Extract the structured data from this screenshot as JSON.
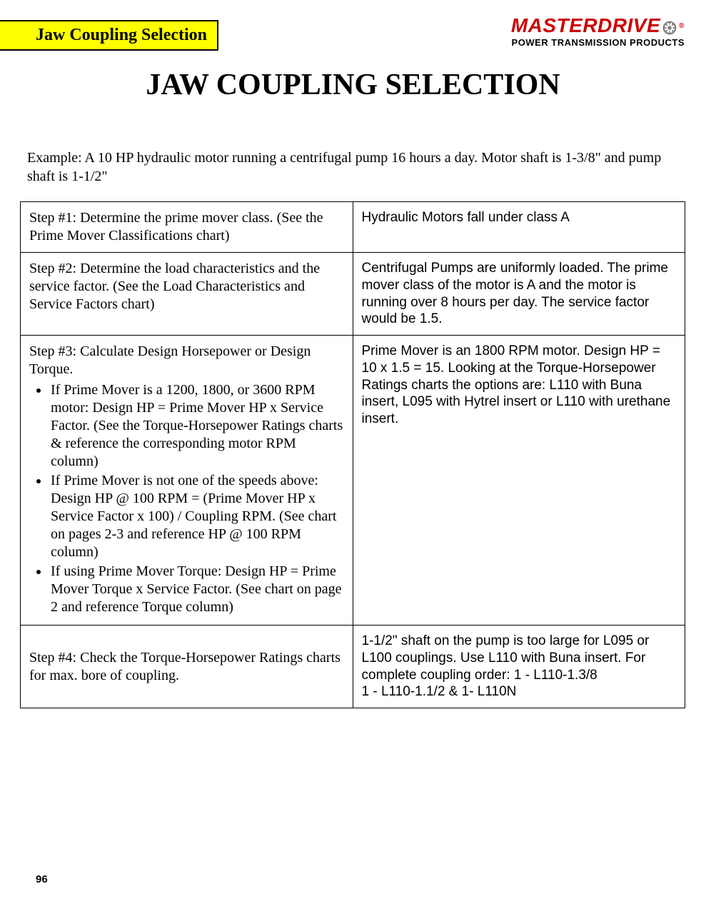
{
  "header": {
    "tab_label": "Jaw Coupling Selection",
    "brand_name": "MASTERDRIVE",
    "brand_tagline": "POWER TRANSMISSION PRODUCTS"
  },
  "title": "JAW COUPLING SELECTION",
  "example_text": "Example: A 10 HP hydraulic motor running a centrifugal pump 16 hours a day. Motor shaft is 1-3/8\" and pump shaft is 1-1/2\"",
  "steps": [
    {
      "left": "Step #1:  Determine the prime mover class. (See the Prime Mover Classifications chart)",
      "right": "Hydraulic Motors fall under class A"
    },
    {
      "left": "Step #2:  Determine the load characteristics and the service factor. (See the Load Characteristics and Service Factors chart)",
      "right": "Centrifugal Pumps are uniformly loaded. The prime mover class of the motor is A and the motor is running over 8 hours per day. The service factor would be 1.5."
    },
    {
      "left_intro": "Step #3:  Calculate Design Horsepower or Design Torque.",
      "bullets": [
        "If Prime Mover is a 1200, 1800, or 3600 RPM motor: Design HP = Prime Mover HP x Service Factor. (See the Torque-Horsepower Ratings charts & reference the corresponding motor RPM column)",
        "If Prime Mover is not one of the speeds above: Design HP @ 100 RPM = (Prime Mover HP x Service Factor x 100) / Coupling RPM. (See chart on pages 2-3 and reference HP @ 100 RPM column)",
        "If using Prime Mover Torque: Design HP = Prime Mover Torque x Service Factor. (See chart on page 2 and reference Torque column)"
      ],
      "right": "Prime Mover is an 1800 RPM motor. Design HP = 10 x 1.5 = 15. Looking at the Torque-Horsepower Ratings charts the options are: L110 with Buna insert, L095 with Hytrel insert or L110 with urethane insert."
    },
    {
      "left": "Step #4:  Check the Torque-Horsepower Ratings charts for max. bore of coupling.",
      "right": "1-1/2\" shaft on the pump is too large for L095 or L100 couplings. Use L110 with Buna insert. For complete coupling order: 1 - L110-1.3/8\n1 - L110-1.1/2 & 1- L110N"
    }
  ],
  "page_number": "96",
  "colors": {
    "tab_bg": "#ffff00",
    "brand_red": "#cc0000",
    "border": "#000000",
    "text": "#000000"
  }
}
